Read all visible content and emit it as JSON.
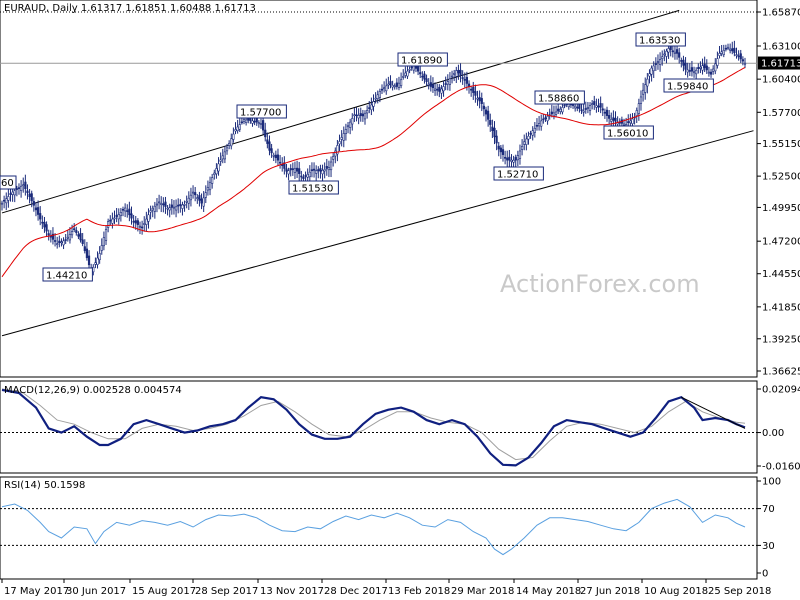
{
  "chart_data": [
    {
      "type": "candlestick",
      "title": "EURAUD, Daily  1.61317 1.61851 1.60488 1.61713",
      "current_price": "1.61713",
      "ylim": [
        1.36625,
        1.6587
      ],
      "y_ticks": [
        "1.65870",
        "1.63100",
        "1.60400",
        "1.57700",
        "1.55150",
        "1.52500",
        "1.49950",
        "1.47200",
        "1.44550",
        "1.41850",
        "1.39250",
        "1.36625"
      ],
      "x_ticks": [
        "17 May 2017",
        "30 Jun 2017",
        "15 Aug 2017",
        "28 Sep 2017",
        "13 Nov 2017",
        "28 Dec 2017",
        "13 Feb 2018",
        "29 Mar 2018",
        "14 May 2018",
        "27 Jun 2018",
        "10 Aug 2018",
        "25 Sep 2018"
      ],
      "swing_labels": [
        "1.44210",
        "1.57700",
        "1.51530",
        "1.61890",
        "1.52710",
        "1.58860",
        "1.56010",
        "1.59840",
        "1.63530"
      ],
      "partial_label": "60",
      "moving_average_color": "#e00000",
      "candle_color": "#1a2a7a",
      "price_path": [
        [
          0,
          1.503
        ],
        [
          5,
          1.512
        ],
        [
          10,
          1.518
        ],
        [
          14,
          1.505
        ],
        [
          18,
          1.49
        ],
        [
          22,
          1.477
        ],
        [
          26,
          1.47
        ],
        [
          30,
          1.473
        ],
        [
          34,
          1.482
        ],
        [
          38,
          1.47
        ],
        [
          42,
          1.447
        ],
        [
          46,
          1.462
        ],
        [
          50,
          1.488
        ],
        [
          54,
          1.492
        ],
        [
          58,
          1.499
        ],
        [
          62,
          1.488
        ],
        [
          66,
          1.483
        ],
        [
          70,
          1.497
        ],
        [
          74,
          1.504
        ],
        [
          78,
          1.499
        ],
        [
          82,
          1.5
        ],
        [
          86,
          1.502
        ],
        [
          90,
          1.512
        ],
        [
          94,
          1.503
        ],
        [
          98,
          1.52
        ],
        [
          102,
          1.535
        ],
        [
          106,
          1.548
        ],
        [
          110,
          1.563
        ],
        [
          114,
          1.571
        ],
        [
          118,
          1.57
        ],
        [
          122,
          1.568
        ],
        [
          126,
          1.546
        ],
        [
          130,
          1.538
        ],
        [
          134,
          1.529
        ],
        [
          138,
          1.531
        ],
        [
          142,
          1.523
        ],
        [
          146,
          1.53
        ],
        [
          150,
          1.529
        ],
        [
          154,
          1.532
        ],
        [
          158,
          1.55
        ],
        [
          162,
          1.563
        ],
        [
          166,
          1.575
        ],
        [
          170,
          1.574
        ],
        [
          174,
          1.583
        ],
        [
          178,
          1.594
        ],
        [
          182,
          1.6
        ],
        [
          186,
          1.598
        ],
        [
          190,
          1.609
        ],
        [
          194,
          1.615
        ],
        [
          198,
          1.606
        ],
        [
          202,
          1.598
        ],
        [
          206,
          1.594
        ],
        [
          210,
          1.602
        ],
        [
          214,
          1.611
        ],
        [
          218,
          1.603
        ],
        [
          222,
          1.593
        ],
        [
          226,
          1.584
        ],
        [
          230,
          1.567
        ],
        [
          234,
          1.547
        ],
        [
          238,
          1.538
        ],
        [
          242,
          1.538
        ],
        [
          246,
          1.553
        ],
        [
          250,
          1.562
        ],
        [
          254,
          1.57
        ],
        [
          258,
          1.575
        ],
        [
          262,
          1.578
        ],
        [
          266,
          1.584
        ],
        [
          270,
          1.582
        ],
        [
          274,
          1.578
        ],
        [
          278,
          1.584
        ],
        [
          282,
          1.581
        ],
        [
          286,
          1.572
        ],
        [
          290,
          1.569
        ],
        [
          294,
          1.567
        ],
        [
          298,
          1.573
        ],
        [
          302,
          1.595
        ],
        [
          306,
          1.613
        ],
        [
          310,
          1.62
        ],
        [
          314,
          1.629
        ],
        [
          318,
          1.625
        ],
        [
          322,
          1.612
        ],
        [
          326,
          1.61
        ],
        [
          330,
          1.615
        ],
        [
          334,
          1.608
        ],
        [
          338,
          1.625
        ],
        [
          342,
          1.63
        ],
        [
          346,
          1.624
        ],
        [
          350,
          1.617
        ]
      ],
      "upper_channel": [
        [
          0,
          1.495
        ],
        [
          319,
          1.66
        ]
      ],
      "lower_channel": [
        [
          0,
          1.395
        ],
        [
          354,
          1.562
        ]
      ],
      "hline_level": 1.617,
      "dotted_level": 1.6587
    },
    {
      "type": "line",
      "title": "MACD(12,26,9) 0.002528 0.004574",
      "ylim": [
        -0.01608,
        0.02094
      ],
      "y_ticks": [
        "0.02094",
        "0.00",
        "-0.016081"
      ],
      "macd_color": "#102080",
      "signal_color": "#a0a0a0",
      "macd_path": [
        [
          0,
          0.0205
        ],
        [
          8,
          0.019
        ],
        [
          16,
          0.012
        ],
        [
          22,
          0.002
        ],
        [
          28,
          0.0
        ],
        [
          34,
          0.003
        ],
        [
          40,
          -0.002
        ],
        [
          46,
          -0.006
        ],
        [
          50,
          -0.006
        ],
        [
          56,
          -0.003
        ],
        [
          62,
          0.004
        ],
        [
          68,
          0.006
        ],
        [
          74,
          0.004
        ],
        [
          80,
          0.002
        ],
        [
          86,
          0.0
        ],
        [
          92,
          0.001
        ],
        [
          98,
          0.003
        ],
        [
          104,
          0.004
        ],
        [
          110,
          0.006
        ],
        [
          116,
          0.012
        ],
        [
          122,
          0.017
        ],
        [
          128,
          0.016
        ],
        [
          134,
          0.011
        ],
        [
          140,
          0.004
        ],
        [
          146,
          -0.001
        ],
        [
          152,
          -0.003
        ],
        [
          158,
          -0.003
        ],
        [
          164,
          -0.002
        ],
        [
          170,
          0.004
        ],
        [
          176,
          0.009
        ],
        [
          182,
          0.011
        ],
        [
          188,
          0.012
        ],
        [
          194,
          0.01
        ],
        [
          200,
          0.006
        ],
        [
          206,
          0.004
        ],
        [
          212,
          0.006
        ],
        [
          218,
          0.004
        ],
        [
          224,
          -0.002
        ],
        [
          230,
          -0.01
        ],
        [
          236,
          -0.0155
        ],
        [
          242,
          -0.0158
        ],
        [
          248,
          -0.012
        ],
        [
          254,
          -0.005
        ],
        [
          260,
          0.003
        ],
        [
          266,
          0.006
        ],
        [
          272,
          0.005
        ],
        [
          278,
          0.004
        ],
        [
          284,
          0.002
        ],
        [
          290,
          0.0
        ],
        [
          296,
          -0.002
        ],
        [
          302,
          0.0
        ],
        [
          308,
          0.007
        ],
        [
          314,
          0.015
        ],
        [
          320,
          0.017
        ],
        [
          326,
          0.012
        ],
        [
          330,
          0.006
        ],
        [
          336,
          0.007
        ],
        [
          342,
          0.006
        ],
        [
          346,
          0.004
        ],
        [
          350,
          0.0025
        ]
      ],
      "signal_path": [
        [
          0,
          0.021
        ],
        [
          10,
          0.019
        ],
        [
          18,
          0.013
        ],
        [
          26,
          0.006
        ],
        [
          34,
          0.004
        ],
        [
          42,
          0.0
        ],
        [
          50,
          -0.003
        ],
        [
          58,
          -0.003
        ],
        [
          66,
          0.002
        ],
        [
          74,
          0.004
        ],
        [
          82,
          0.003
        ],
        [
          90,
          0.001
        ],
        [
          98,
          0.002
        ],
        [
          106,
          0.004
        ],
        [
          114,
          0.008
        ],
        [
          122,
          0.013
        ],
        [
          130,
          0.015
        ],
        [
          138,
          0.01
        ],
        [
          146,
          0.004
        ],
        [
          154,
          -0.001
        ],
        [
          162,
          -0.002
        ],
        [
          170,
          0.001
        ],
        [
          178,
          0.006
        ],
        [
          186,
          0.01
        ],
        [
          194,
          0.01
        ],
        [
          202,
          0.007
        ],
        [
          210,
          0.005
        ],
        [
          218,
          0.004
        ],
        [
          226,
          0.0
        ],
        [
          234,
          -0.008
        ],
        [
          242,
          -0.013
        ],
        [
          250,
          -0.012
        ],
        [
          258,
          -0.004
        ],
        [
          266,
          0.003
        ],
        [
          274,
          0.005
        ],
        [
          282,
          0.004
        ],
        [
          290,
          0.002
        ],
        [
          298,
          0.0
        ],
        [
          306,
          0.003
        ],
        [
          314,
          0.01
        ],
        [
          322,
          0.015
        ],
        [
          330,
          0.01
        ],
        [
          338,
          0.007
        ],
        [
          346,
          0.005
        ],
        [
          350,
          0.0045
        ]
      ],
      "trendline": [
        [
          320,
          0.017
        ],
        [
          350,
          0.002
        ]
      ]
    },
    {
      "type": "line",
      "title": "RSI(14) 50.1598",
      "ylim": [
        0,
        100
      ],
      "y_ticks": [
        "100",
        "70",
        "30",
        "0"
      ],
      "rsi_color": "#5aa0e0",
      "rsi_path": [
        [
          0,
          72
        ],
        [
          6,
          75
        ],
        [
          12,
          68
        ],
        [
          18,
          55
        ],
        [
          22,
          45
        ],
        [
          28,
          38
        ],
        [
          34,
          50
        ],
        [
          40,
          48
        ],
        [
          44,
          32
        ],
        [
          48,
          45
        ],
        [
          54,
          55
        ],
        [
          60,
          52
        ],
        [
          66,
          57
        ],
        [
          72,
          55
        ],
        [
          78,
          52
        ],
        [
          84,
          56
        ],
        [
          90,
          50
        ],
        [
          96,
          58
        ],
        [
          102,
          63
        ],
        [
          108,
          62
        ],
        [
          114,
          64
        ],
        [
          120,
          60
        ],
        [
          126,
          52
        ],
        [
          132,
          46
        ],
        [
          138,
          45
        ],
        [
          144,
          50
        ],
        [
          150,
          48
        ],
        [
          156,
          56
        ],
        [
          162,
          62
        ],
        [
          168,
          58
        ],
        [
          174,
          63
        ],
        [
          180,
          60
        ],
        [
          186,
          65
        ],
        [
          192,
          60
        ],
        [
          198,
          52
        ],
        [
          204,
          50
        ],
        [
          210,
          58
        ],
        [
          216,
          55
        ],
        [
          222,
          45
        ],
        [
          228,
          38
        ],
        [
          232,
          26
        ],
        [
          236,
          20
        ],
        [
          240,
          26
        ],
        [
          246,
          38
        ],
        [
          252,
          52
        ],
        [
          258,
          60
        ],
        [
          264,
          60
        ],
        [
          270,
          58
        ],
        [
          276,
          56
        ],
        [
          282,
          52
        ],
        [
          288,
          48
        ],
        [
          294,
          46
        ],
        [
          300,
          55
        ],
        [
          306,
          70
        ],
        [
          312,
          76
        ],
        [
          318,
          80
        ],
        [
          324,
          72
        ],
        [
          330,
          55
        ],
        [
          336,
          63
        ],
        [
          342,
          60
        ],
        [
          346,
          54
        ],
        [
          350,
          50
        ]
      ]
    }
  ],
  "watermark": "ActionForex.com"
}
